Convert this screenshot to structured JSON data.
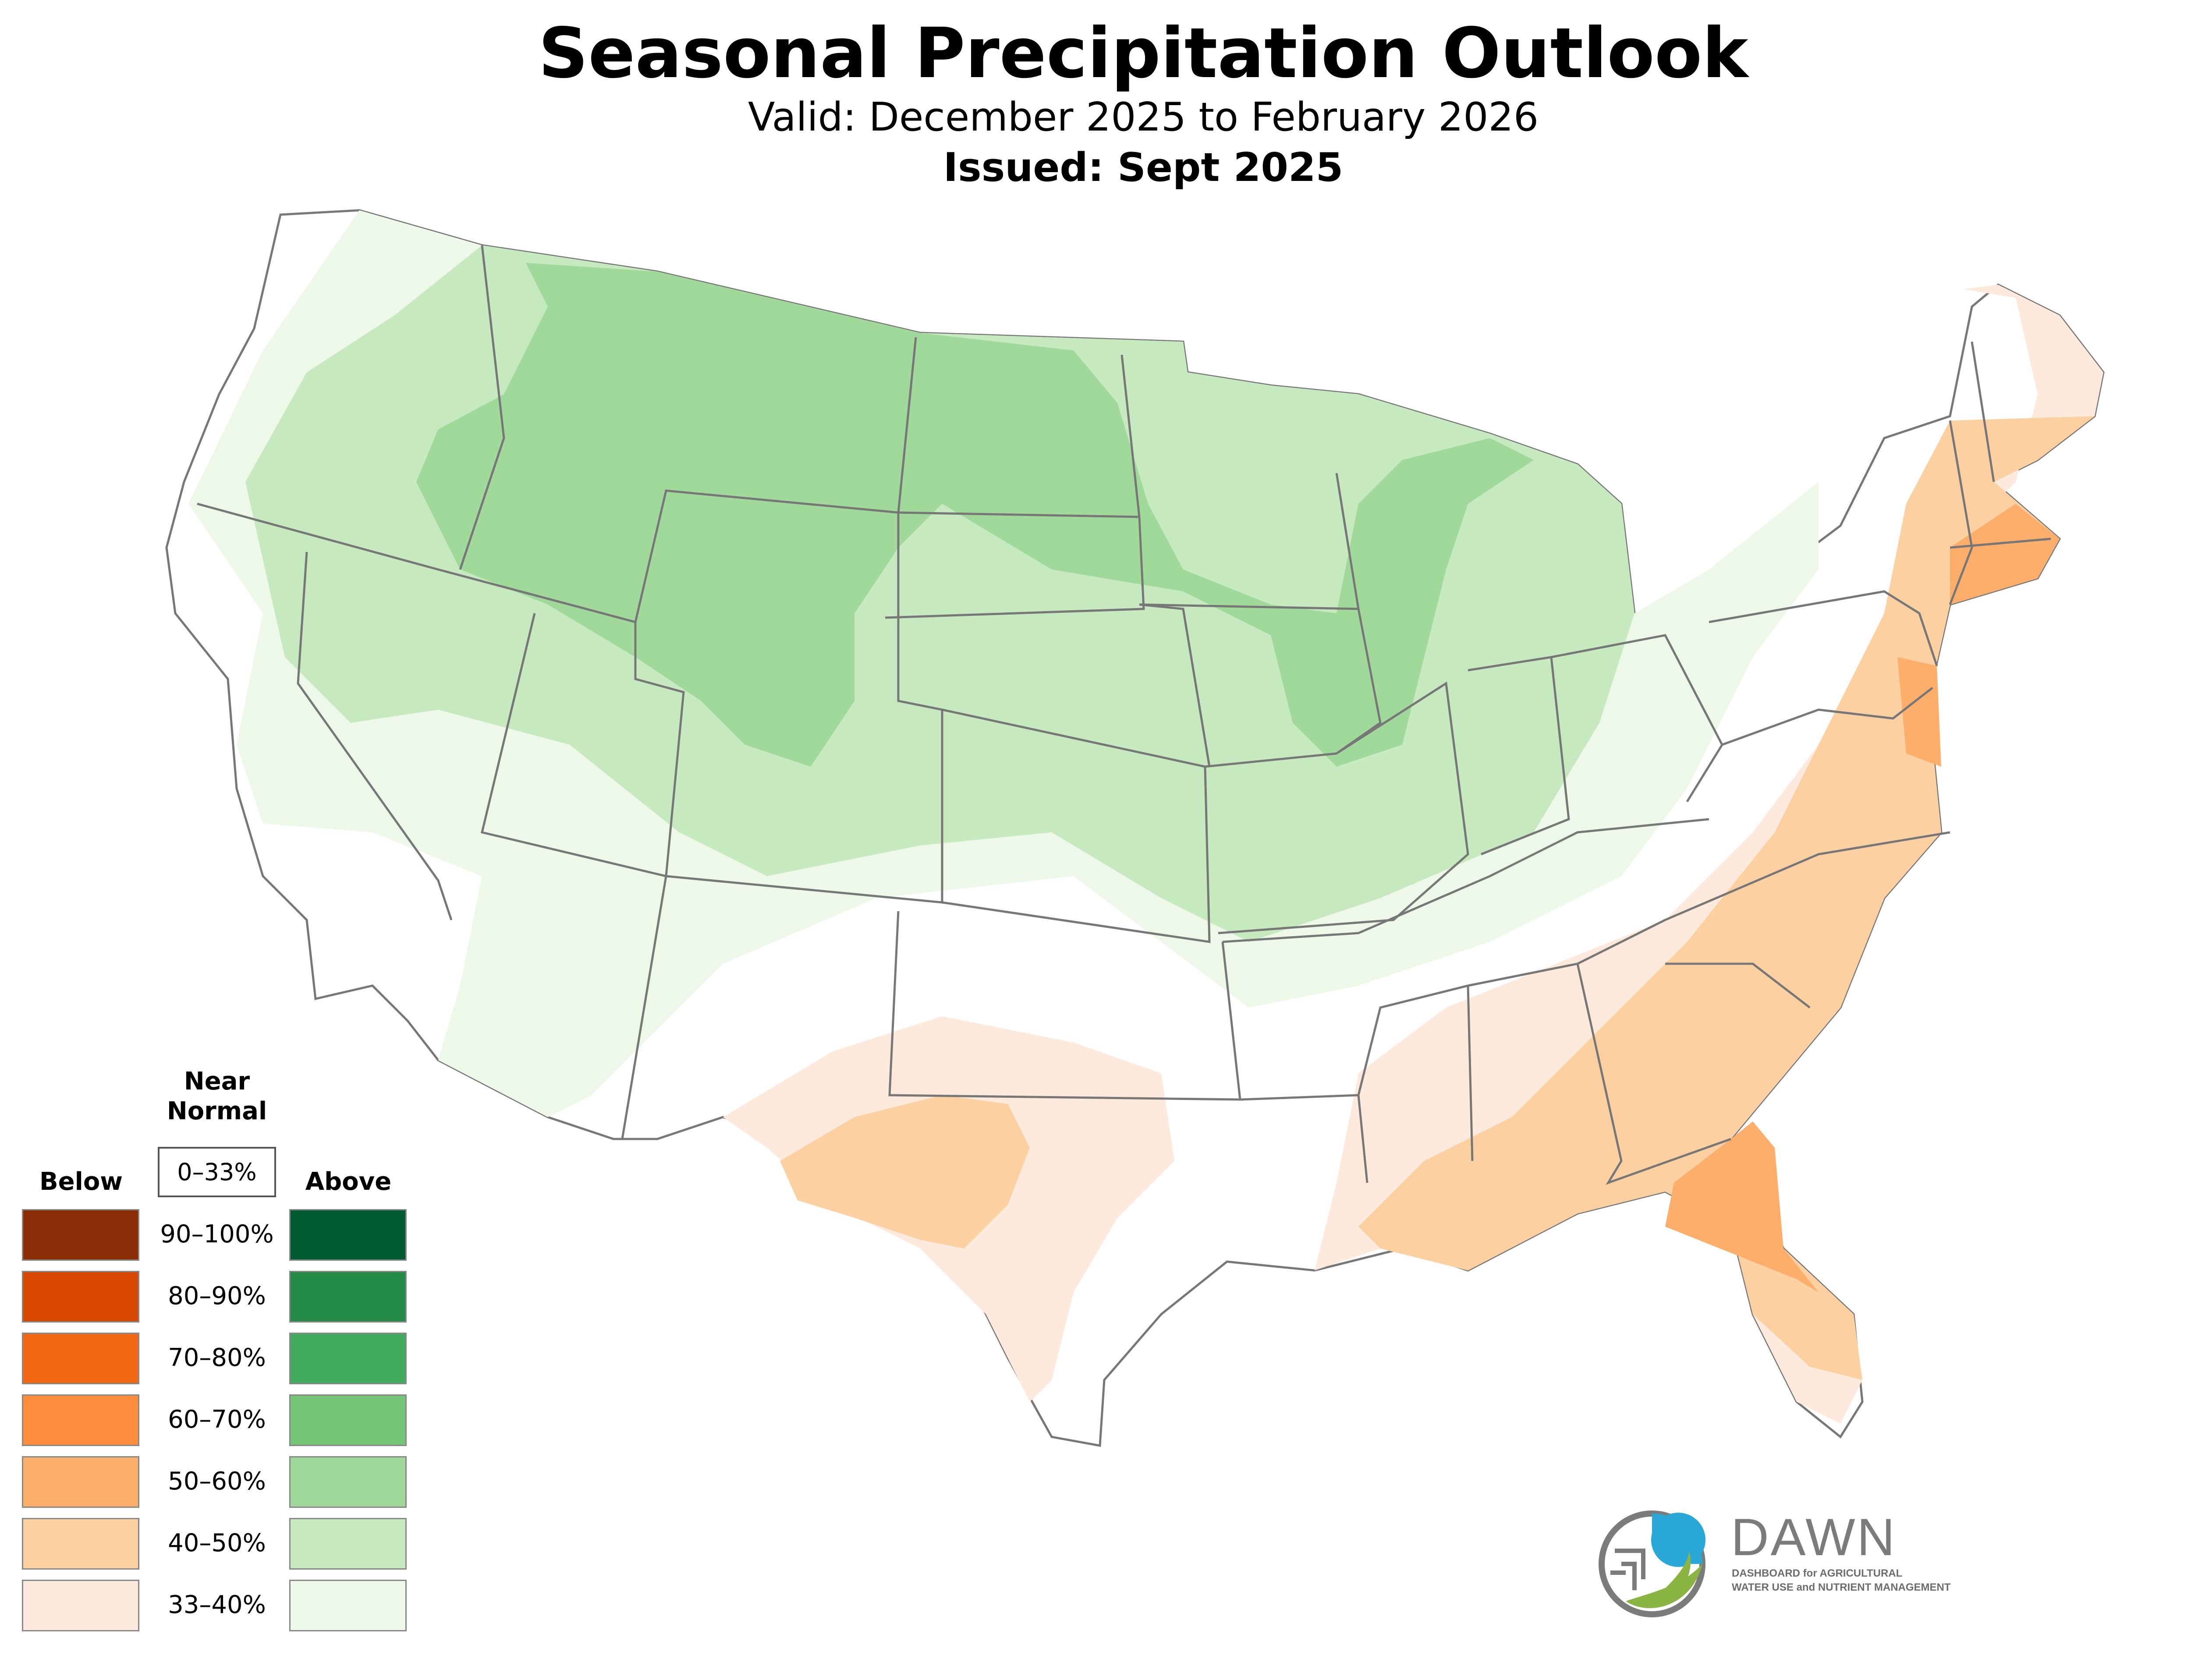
{
  "title": "Seasonal Precipitation Outlook",
  "subtitle": "Valid: December 2025 to February 2026",
  "issued": "Issued: Sept 2025",
  "legend": {
    "below_heading": "Below",
    "near_heading": "Near\nNormal",
    "above_heading": "Above",
    "near_range": "0–33%",
    "rows": [
      {
        "label": "90–100%",
        "below_color": "#8b2c07",
        "above_color": "#005a32"
      },
      {
        "label": "80–90%",
        "below_color": "#d94801",
        "above_color": "#238b45"
      },
      {
        "label": "70–80%",
        "below_color": "#f16913",
        "above_color": "#41ab5d"
      },
      {
        "label": "60–70%",
        "below_color": "#fd8d3c",
        "above_color": "#74c476"
      },
      {
        "label": "50–60%",
        "below_color": "#fdae6b",
        "above_color": "#a1d99b"
      },
      {
        "label": "40–50%",
        "below_color": "#fdd0a2",
        "above_color": "#c7e9c0"
      },
      {
        "label": "33–40%",
        "below_color": "#feeadc",
        "above_color": "#edf8e9"
      }
    ]
  },
  "logo": {
    "name": "DAWN",
    "line1": "DASHBOARD for AGRICULTURAL",
    "line2": "WATER USE and NUTRIENT MANAGEMENT",
    "colors": {
      "blue": "#29a8d8",
      "green": "#8bb543",
      "gray": "#7b7b7b"
    }
  },
  "map_colors": {
    "above_33_40": "#edf8e9",
    "above_40_50": "#c7e9c0",
    "above_50_60": "#a1d99b",
    "below_33_40": "#feeadc",
    "below_40_50": "#fdd0a2",
    "below_50_60": "#fdae6b",
    "border": "#777777"
  }
}
